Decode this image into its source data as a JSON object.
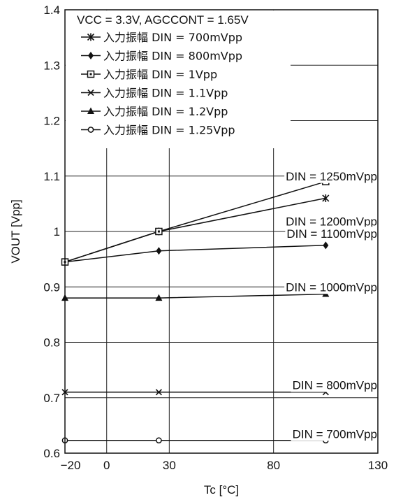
{
  "chart_data": {
    "type": "line",
    "title": "",
    "xlabel": "Tc [°C]",
    "ylabel": "VOUT [Vpp]",
    "xlim": [
      -20,
      130
    ],
    "ylim": [
      0.6,
      1.4
    ],
    "xticks": [
      "−20",
      "0",
      "30",
      "80",
      "130"
    ],
    "yticks": [
      "0.6",
      "0.7",
      "0.8",
      "0.9",
      "1",
      "1.1",
      "1.2",
      "1.3",
      "1.4"
    ],
    "grid": true,
    "legend_position": "top-left",
    "condition": "VCC = 3.3V, AGCCONT = 1.65V",
    "x": [
      -20,
      25,
      105
    ],
    "series": [
      {
        "name": "入力振幅 DIN = 700mVpp",
        "marker": "asterisk",
        "values": [
          0.945,
          1.0,
          1.06
        ]
      },
      {
        "name": "入力振幅 DIN = 800mVpp",
        "marker": "diamond",
        "values": [
          0.945,
          0.965,
          0.975
        ]
      },
      {
        "name": "入力振幅 DIN = 1Vpp",
        "marker": "square",
        "values": [
          0.945,
          1.0,
          1.09
        ]
      },
      {
        "name": "入力振幅 DIN = 1.1Vpp",
        "marker": "x",
        "values": [
          0.71,
          0.71,
          0.71
        ]
      },
      {
        "name": "入力振幅 DIN = 1.2Vpp",
        "marker": "triangle",
        "values": [
          0.88,
          0.88,
          0.887
        ]
      },
      {
        "name": "入力振幅 DIN = 1.25Vpp",
        "marker": "circle",
        "values": [
          0.623,
          0.623,
          0.623
        ]
      }
    ],
    "annotations": [
      {
        "text": "DIN = 1250mVpp",
        "x": 105,
        "y": 1.1
      },
      {
        "text": "DIN = 1200mVpp",
        "x": 105,
        "y": 1.018
      },
      {
        "text": "DIN = 1100mVpp",
        "x": 105,
        "y": 0.996
      },
      {
        "text": "DIN = 1000mVpp",
        "x": 105,
        "y": 0.9
      },
      {
        "text": "DIN = 800mVpp",
        "x": 105,
        "y": 0.723
      },
      {
        "text": "DIN = 700mVpp",
        "x": 105,
        "y": 0.635
      }
    ]
  }
}
